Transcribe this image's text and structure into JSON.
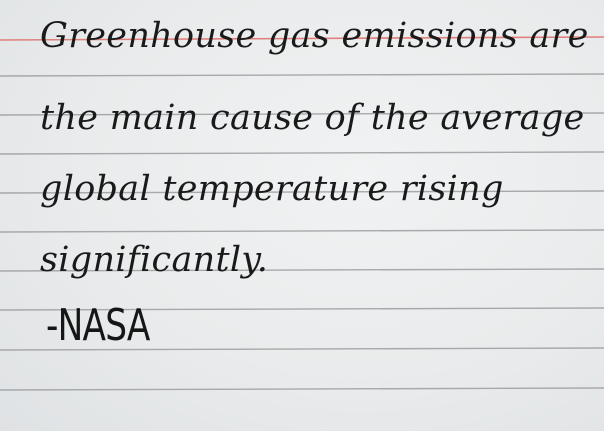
{
  "quote": {
    "lines": [
      "Greenhouse gas emissions are",
      "the main cause of the average",
      "global temperature rising",
      "significantly."
    ],
    "attribution": "-NASA"
  },
  "colors": {
    "paper": "#eceeef",
    "rule_line": "#a6a8aa",
    "margin_rule": "#e0807c",
    "ink": "#1a1a1a"
  }
}
